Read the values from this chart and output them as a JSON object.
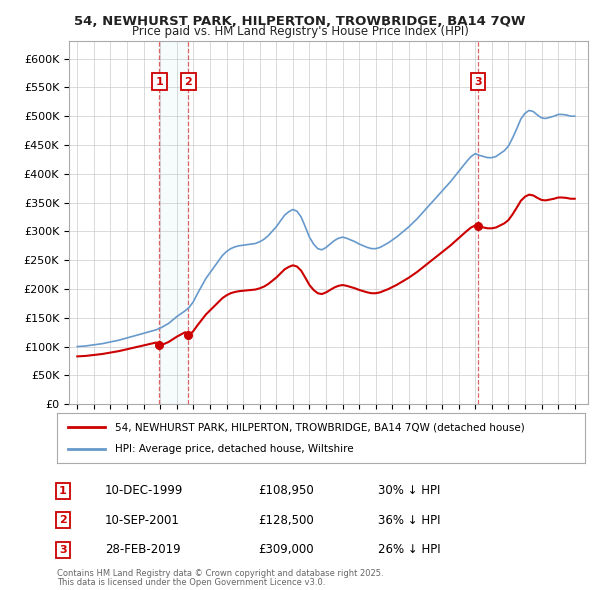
{
  "title1": "54, NEWHURST PARK, HILPERTON, TROWBRIDGE, BA14 7QW",
  "title2": "Price paid vs. HM Land Registry's House Price Index (HPI)",
  "sale_color": "#cc0000",
  "hpi_color": "#6699cc",
  "transactions": [
    {
      "num": 1,
      "date": "10-DEC-1999",
      "price": 108950,
      "pct": "30%",
      "x": 1999.95
    },
    {
      "num": 2,
      "date": "10-SEP-2001",
      "price": 128500,
      "pct": "36%",
      "x": 2001.7
    },
    {
      "num": 3,
      "date": "28-FEB-2019",
      "price": 309000,
      "pct": "26%",
      "x": 2019.15
    }
  ],
  "legend_line1": "54, NEWHURST PARK, HILPERTON, TROWBRIDGE, BA14 7QW (detached house)",
  "legend_line2": "HPI: Average price, detached house, Wiltshire",
  "footnote1": "Contains HM Land Registry data © Crown copyright and database right 2025.",
  "footnote2": "This data is licensed under the Open Government Licence v3.0.",
  "ylim": [
    0,
    630000
  ],
  "yticks": [
    0,
    50000,
    100000,
    150000,
    200000,
    250000,
    300000,
    350000,
    400000,
    450000,
    500000,
    550000,
    600000
  ],
  "xlim": [
    1994.5,
    2025.8
  ],
  "xticks": [
    1995,
    1996,
    1997,
    1998,
    1999,
    2000,
    2001,
    2002,
    2003,
    2004,
    2005,
    2006,
    2007,
    2008,
    2009,
    2010,
    2011,
    2012,
    2013,
    2014,
    2015,
    2016,
    2017,
    2018,
    2019,
    2020,
    2021,
    2022,
    2023,
    2024,
    2025
  ],
  "hpi_years": [
    1995.0,
    1995.25,
    1995.5,
    1995.75,
    1996.0,
    1996.25,
    1996.5,
    1996.75,
    1997.0,
    1997.25,
    1997.5,
    1997.75,
    1998.0,
    1998.25,
    1998.5,
    1998.75,
    1999.0,
    1999.25,
    1999.5,
    1999.75,
    2000.0,
    2000.25,
    2000.5,
    2000.75,
    2001.0,
    2001.25,
    2001.5,
    2001.75,
    2002.0,
    2002.25,
    2002.5,
    2002.75,
    2003.0,
    2003.25,
    2003.5,
    2003.75,
    2004.0,
    2004.25,
    2004.5,
    2004.75,
    2005.0,
    2005.25,
    2005.5,
    2005.75,
    2006.0,
    2006.25,
    2006.5,
    2006.75,
    2007.0,
    2007.25,
    2007.5,
    2007.75,
    2008.0,
    2008.25,
    2008.5,
    2008.75,
    2009.0,
    2009.25,
    2009.5,
    2009.75,
    2010.0,
    2010.25,
    2010.5,
    2010.75,
    2011.0,
    2011.25,
    2011.5,
    2011.75,
    2012.0,
    2012.25,
    2012.5,
    2012.75,
    2013.0,
    2013.25,
    2013.5,
    2013.75,
    2014.0,
    2014.25,
    2014.5,
    2014.75,
    2015.0,
    2015.25,
    2015.5,
    2015.75,
    2016.0,
    2016.25,
    2016.5,
    2016.75,
    2017.0,
    2017.25,
    2017.5,
    2017.75,
    2018.0,
    2018.25,
    2018.5,
    2018.75,
    2019.0,
    2019.25,
    2019.5,
    2019.75,
    2020.0,
    2020.25,
    2020.5,
    2020.75,
    2021.0,
    2021.25,
    2021.5,
    2021.75,
    2022.0,
    2022.25,
    2022.5,
    2022.75,
    2023.0,
    2023.25,
    2023.5,
    2023.75,
    2024.0,
    2024.25,
    2024.5,
    2024.75,
    2025.0
  ],
  "hpi_values": [
    100000,
    100500,
    101000,
    102000,
    103000,
    104000,
    105000,
    106500,
    108000,
    109500,
    111000,
    113000,
    115000,
    117000,
    119000,
    121000,
    123000,
    125000,
    127000,
    129000,
    132000,
    136000,
    140000,
    146000,
    152000,
    157000,
    162000,
    168000,
    178000,
    192000,
    205000,
    218000,
    228000,
    238000,
    248000,
    258000,
    265000,
    270000,
    273000,
    275000,
    276000,
    277000,
    278000,
    279000,
    282000,
    286000,
    292000,
    300000,
    308000,
    318000,
    328000,
    334000,
    338000,
    335000,
    325000,
    308000,
    290000,
    278000,
    270000,
    268000,
    272000,
    278000,
    284000,
    288000,
    290000,
    288000,
    285000,
    282000,
    278000,
    275000,
    272000,
    270000,
    270000,
    272000,
    276000,
    280000,
    285000,
    290000,
    296000,
    302000,
    308000,
    315000,
    322000,
    330000,
    338000,
    346000,
    354000,
    362000,
    370000,
    378000,
    386000,
    395000,
    404000,
    413000,
    422000,
    430000,
    435000,
    432000,
    430000,
    428000,
    428000,
    430000,
    435000,
    440000,
    448000,
    462000,
    478000,
    495000,
    505000,
    510000,
    508000,
    502000,
    497000,
    496000,
    498000,
    500000,
    503000,
    503000,
    502000,
    500000,
    500000
  ]
}
